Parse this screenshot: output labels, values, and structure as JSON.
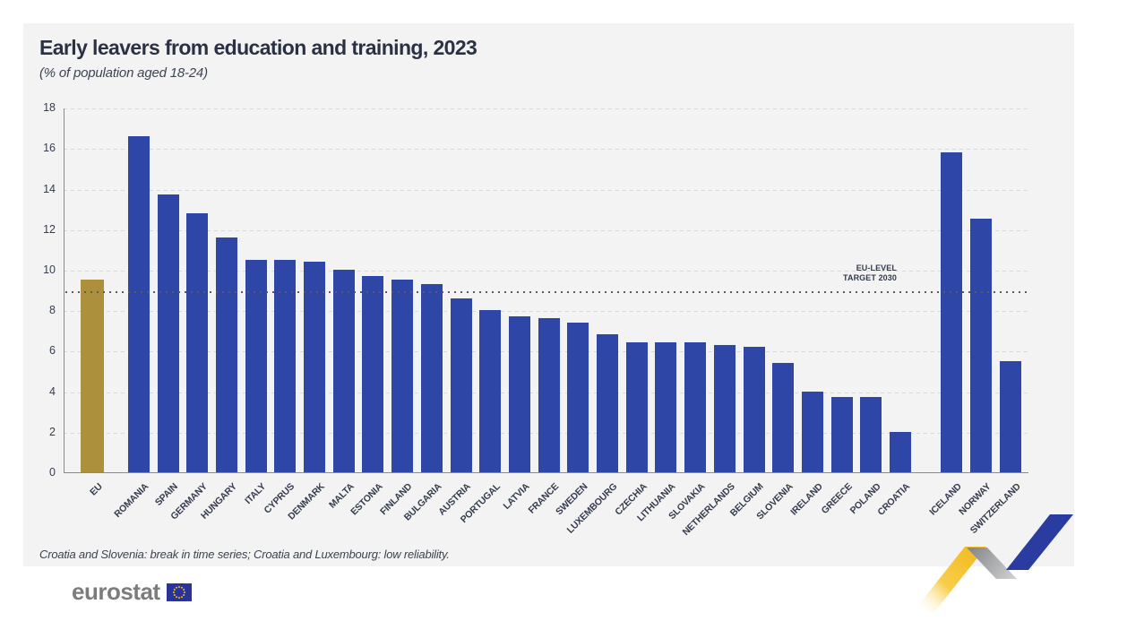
{
  "header": {
    "title": "Early leavers from education and training, 2023",
    "subtitle": "(% of population aged 18-24)"
  },
  "annotation": {
    "line1": "EU-LEVEL",
    "line2": "TARGET 2030"
  },
  "footnote": "Croatia and Slovenia: break in time series; Croatia and Luxembourg: low reliability.",
  "logo": {
    "text": "eurostat",
    "flag": "eu-flag"
  },
  "colors": {
    "panel_bg": "#f3f3f4",
    "bar_blue": "#2e46a5",
    "bar_gold": "#ad903b",
    "axis": "#8a8a8a",
    "grid": "#d9d9db",
    "target_dots": "#595b60",
    "text_navy": "#333b4d",
    "ribbon_yellow": "#f4c32f",
    "ribbon_gray": "#a9abae",
    "ribbon_blue": "#2b3ca0",
    "flag_blue": "#29339a",
    "flag_stars": "#f7c600",
    "logo_gray": "#7c7c7c"
  },
  "chart_data": {
    "type": "bar",
    "title": "Early leavers from education and training, 2023",
    "subtitle": "(% of population aged 18-24)",
    "xlabel": "",
    "ylabel": "% of population aged 18-24",
    "ylim": [
      0,
      18
    ],
    "ytick_step": 2,
    "grid": "horizontal dashed",
    "legend": "none",
    "xlabel_rotation": -45,
    "target_line": {
      "value": 9.0,
      "label": "EU-LEVEL TARGET 2030"
    },
    "categories": [
      "EU",
      "ROMANIA",
      "SPAIN",
      "GERMANY",
      "HUNGARY",
      "ITALY",
      "CYPRUS",
      "DENMARK",
      "MALTA",
      "ESTONIA",
      "FINLAND",
      "BULGARIA",
      "AUSTRIA",
      "PORTUGAL",
      "LATVIA",
      "FRANCE",
      "SWEDEN",
      "LUXEMBOURG",
      "CZECHIA",
      "LITHUANIA",
      "SLOVAKIA",
      "NETHERLANDS",
      "BELGIUM",
      "SLOVENIA",
      "IRELAND",
      "GREECE",
      "POLAND",
      "CROATIA",
      "ICELAND",
      "NORWAY",
      "SWITZERLAND"
    ],
    "values": [
      9.5,
      16.6,
      13.7,
      12.8,
      11.6,
      10.5,
      10.5,
      10.4,
      10.0,
      9.7,
      9.5,
      9.3,
      8.6,
      8.0,
      7.7,
      7.6,
      7.4,
      6.8,
      6.4,
      6.4,
      6.4,
      6.3,
      6.2,
      5.4,
      4.0,
      3.7,
      3.7,
      2.0,
      15.8,
      12.5,
      5.5
    ],
    "groups": [
      "eu",
      "member",
      "member",
      "member",
      "member",
      "member",
      "member",
      "member",
      "member",
      "member",
      "member",
      "member",
      "member",
      "member",
      "member",
      "member",
      "member",
      "member",
      "member",
      "member",
      "member",
      "member",
      "member",
      "member",
      "member",
      "member",
      "member",
      "member",
      "efta",
      "efta",
      "efta"
    ]
  }
}
